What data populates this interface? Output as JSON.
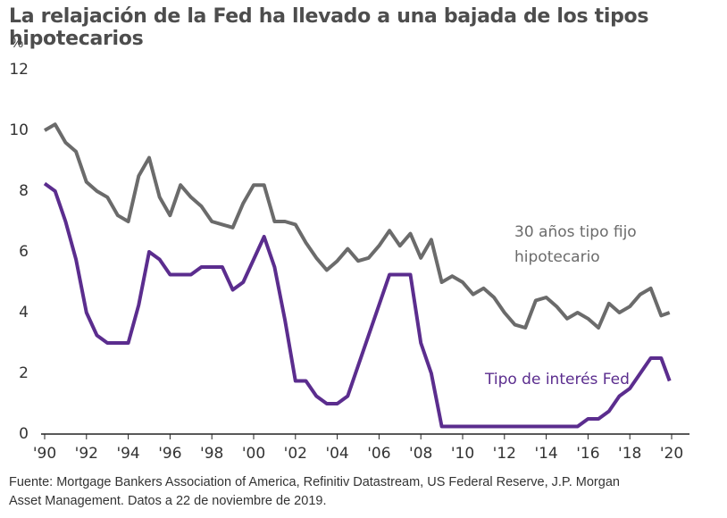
{
  "chart_data": {
    "type": "line",
    "title": "La relajación de la Fed ha llevado a una bajada de los tipos hipotecarios",
    "y_label": "%",
    "source": "Fuente: Mortgage Bankers Association of America, Refinitiv Datastream, US Federal Reserve, J.P. Morgan Asset Management. Datos a 22 de noviembre de 2019.",
    "x": [
      1990,
      1990.5,
      1991,
      1991.5,
      1992,
      1992.5,
      1993,
      1993.5,
      1994,
      1994.5,
      1995,
      1995.5,
      1996,
      1996.5,
      1997,
      1997.5,
      1998,
      1998.5,
      1999,
      1999.5,
      2000,
      2000.5,
      2001,
      2001.5,
      2002,
      2002.5,
      2003,
      2003.5,
      2004,
      2004.5,
      2005,
      2005.5,
      2006,
      2006.5,
      2007,
      2007.5,
      2008,
      2008.5,
      2009,
      2009.5,
      2010,
      2010.5,
      2011,
      2011.5,
      2012,
      2012.5,
      2013,
      2013.5,
      2014,
      2014.5,
      2015,
      2015.5,
      2016,
      2016.5,
      2017,
      2017.5,
      2018,
      2018.5,
      2019,
      2019.5,
      2019.9
    ],
    "series": [
      {
        "name": "30 años tipo fijo hipotecario",
        "color": "#6b6b6b",
        "values": [
          10.0,
          10.2,
          9.6,
          9.3,
          8.3,
          8.0,
          7.8,
          7.2,
          7.0,
          8.5,
          9.1,
          7.8,
          7.2,
          8.2,
          7.8,
          7.5,
          7.0,
          6.9,
          6.8,
          7.6,
          8.2,
          8.2,
          7.0,
          7.0,
          6.9,
          6.3,
          5.8,
          5.4,
          5.7,
          6.1,
          5.7,
          5.8,
          6.2,
          6.7,
          6.2,
          6.6,
          5.8,
          6.4,
          5.0,
          5.2,
          5.0,
          4.6,
          4.8,
          4.5,
          4.0,
          3.6,
          3.5,
          4.4,
          4.5,
          4.2,
          3.8,
          4.0,
          3.8,
          3.5,
          4.3,
          4.0,
          4.2,
          4.6,
          4.8,
          3.9,
          4.0
        ]
      },
      {
        "name": "Tipo de interés Fed",
        "color": "#5b2d8e",
        "values": [
          8.25,
          8.0,
          7.0,
          5.75,
          4.0,
          3.25,
          3.0,
          3.0,
          3.0,
          4.25,
          6.0,
          5.75,
          5.25,
          5.25,
          5.25,
          5.5,
          5.5,
          5.5,
          4.75,
          5.0,
          5.75,
          6.5,
          5.5,
          3.75,
          1.75,
          1.75,
          1.25,
          1.0,
          1.0,
          1.25,
          2.25,
          3.25,
          4.25,
          5.25,
          5.25,
          5.25,
          3.0,
          2.0,
          0.25,
          0.25,
          0.25,
          0.25,
          0.25,
          0.25,
          0.25,
          0.25,
          0.25,
          0.25,
          0.25,
          0.25,
          0.25,
          0.25,
          0.5,
          0.5,
          0.75,
          1.25,
          1.5,
          2.0,
          2.5,
          2.5,
          1.75
        ]
      }
    ],
    "xlim": [
      1990,
      2020
    ],
    "xticks": [
      {
        "value": 1990,
        "label": "'90"
      },
      {
        "value": 1992,
        "label": "'92"
      },
      {
        "value": 1994,
        "label": "'94"
      },
      {
        "value": 1996,
        "label": "'96"
      },
      {
        "value": 1998,
        "label": "'98"
      },
      {
        "value": 2000,
        "label": "'00"
      },
      {
        "value": 2002,
        "label": "'02"
      },
      {
        "value": 2004,
        "label": "'04"
      },
      {
        "value": 2006,
        "label": "'06"
      },
      {
        "value": 2008,
        "label": "'08"
      },
      {
        "value": 2010,
        "label": "'10"
      },
      {
        "value": 2012,
        "label": "'12"
      },
      {
        "value": 2014,
        "label": "'14"
      },
      {
        "value": 2016,
        "label": "'16"
      },
      {
        "value": 2018,
        "label": "'18"
      },
      {
        "value": 2020,
        "label": "'20"
      }
    ],
    "ylim": [
      0,
      12
    ],
    "yticks": [
      0,
      2,
      4,
      6,
      8,
      10,
      12
    ],
    "grid": false
  }
}
